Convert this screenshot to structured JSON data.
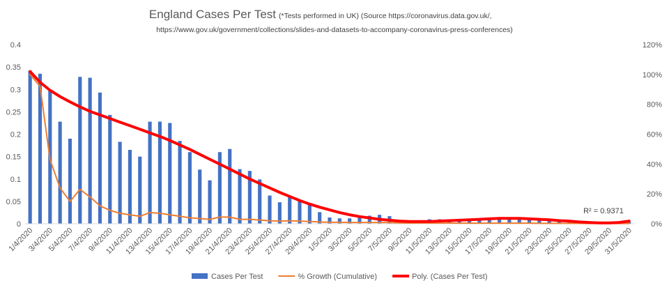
{
  "chart_data": {
    "type": "bar",
    "title": "England Cases Per Test",
    "title_note": "(*Tests performed in UK) (Source https://coronavirus.data.gov.uk/,",
    "title_line2": "https://www.gov.uk/government/collections/slides-and-datasets-to-accompany-coronavirus-press-conferences)",
    "xlabel": "",
    "ylabel": "",
    "ylim": [
      0,
      0.4
    ],
    "y_ticks": [
      "0",
      "0.05",
      "0.1",
      "0.15",
      "0.2",
      "0.25",
      "0.3",
      "0.35",
      "0.4"
    ],
    "y2lim": [
      0,
      1.2
    ],
    "y2_ticks": [
      "0%",
      "20%",
      "40%",
      "60%",
      "80%",
      "100%",
      "120%"
    ],
    "categories": [
      "1/4/2020",
      "2/4/2020",
      "3/4/2020",
      "4/4/2020",
      "5/4/2020",
      "6/4/2020",
      "7/4/2020",
      "8/4/2020",
      "9/4/2020",
      "10/4/2020",
      "11/4/2020",
      "12/4/2020",
      "13/4/2020",
      "14/4/2020",
      "15/4/2020",
      "16/4/2020",
      "17/4/2020",
      "18/4/2020",
      "19/4/2020",
      "20/4/2020",
      "21/4/2020",
      "22/4/2020",
      "23/4/2020",
      "24/4/2020",
      "25/4/2020",
      "26/4/2020",
      "27/4/2020",
      "28/4/2020",
      "29/4/2020",
      "30/4/2020",
      "1/5/2020",
      "2/5/2020",
      "3/5/2020",
      "4/5/2020",
      "5/5/2020",
      "6/5/2020",
      "7/5/2020",
      "8/5/2020",
      "9/5/2020",
      "10/5/2020",
      "11/5/2020",
      "12/5/2020",
      "13/5/2020",
      "14/5/2020",
      "15/5/2020",
      "16/5/2020",
      "17/5/2020",
      "18/5/2020",
      "19/5/2020",
      "20/5/2020",
      "21/5/2020",
      "22/5/2020",
      "23/5/2020",
      "24/5/2020",
      "25/5/2020",
      "26/5/2020",
      "27/5/2020",
      "28/5/2020",
      "29/5/2020",
      "30/5/2020",
      "31/5/2020"
    ],
    "x_tick_labels": [
      "1/4/2020",
      "3/4/2020",
      "5/4/2020",
      "7/4/2020",
      "9/4/2020",
      "11/4/2020",
      "13/4/2020",
      "15/4/2020",
      "17/4/2020",
      "19/4/2020",
      "21/4/2020",
      "23/4/2020",
      "25/4/2020",
      "27/4/2020",
      "29/4/2020",
      "1/5/2020",
      "3/5/2020",
      "5/5/2020",
      "7/5/2020",
      "9/5/2020",
      "11/5/2020",
      "13/5/2020",
      "15/5/2020",
      "17/5/2020",
      "19/5/2020",
      "21/5/2020",
      "23/5/2020",
      "25/5/2020",
      "27/5/2020",
      "29/5/2020",
      "31/5/2020"
    ],
    "series": [
      {
        "name": "Cases Per Test",
        "type": "bar",
        "axis": "left",
        "color": "#4472C4",
        "values": [
          0.342,
          0.335,
          0.297,
          0.228,
          0.19,
          0.328,
          0.326,
          0.293,
          0.243,
          0.183,
          0.165,
          0.15,
          0.228,
          0.228,
          0.225,
          0.185,
          0.16,
          0.121,
          0.097,
          0.16,
          0.167,
          0.122,
          0.118,
          0.099,
          0.063,
          0.048,
          0.059,
          0.052,
          0.043,
          0.026,
          0.014,
          0.012,
          0.012,
          0.014,
          0.018,
          0.02,
          0.017,
          0.006,
          0.005,
          0.005,
          0.01,
          0.01,
          0.01,
          0.009,
          0.009,
          0.01,
          0.009,
          0.01,
          0.011,
          0.01,
          0.009,
          0.008,
          0.007,
          0.006,
          0.005,
          0.004,
          0.003,
          0.002,
          0.001,
          0.002,
          0.004
        ]
      },
      {
        "name": "% Growth (Cumulative)",
        "type": "line",
        "axis": "right",
        "color": "#ED7D31",
        "values": [
          1.0,
          0.92,
          0.43,
          0.24,
          0.15,
          0.23,
          0.18,
          0.12,
          0.09,
          0.07,
          0.06,
          0.05,
          0.075,
          0.07,
          0.06,
          0.05,
          0.04,
          0.035,
          0.03,
          0.045,
          0.045,
          0.03,
          0.03,
          0.025,
          0.02,
          0.018,
          0.02,
          0.018,
          0.015,
          0.012,
          0.01,
          0.01,
          0.009,
          0.009,
          0.009,
          0.009,
          0.008,
          0.006,
          0.005,
          0.005,
          0.005,
          0.005,
          0.005,
          0.004,
          0.004,
          0.004,
          0.004,
          0.004,
          0.004,
          0.004,
          0.004,
          0.003,
          0.003,
          0.003,
          0.003,
          0.003,
          0.002,
          0.002,
          0.002,
          0.002,
          0.002
        ]
      },
      {
        "name": "Poly. (Cases Per Test)",
        "type": "line",
        "axis": "left",
        "color": "#FF0000",
        "values": [
          0.34,
          0.316,
          0.298,
          0.284,
          0.272,
          0.261,
          0.251,
          0.243,
          0.235,
          0.227,
          0.219,
          0.211,
          0.203,
          0.195,
          0.186,
          0.176,
          0.166,
          0.155,
          0.144,
          0.133,
          0.122,
          0.111,
          0.1,
          0.09,
          0.08,
          0.07,
          0.061,
          0.052,
          0.044,
          0.037,
          0.031,
          0.025,
          0.02,
          0.016,
          0.013,
          0.01,
          0.008,
          0.006,
          0.005,
          0.005,
          0.005,
          0.006,
          0.007,
          0.008,
          0.009,
          0.01,
          0.011,
          0.012,
          0.012,
          0.012,
          0.011,
          0.01,
          0.009,
          0.007,
          0.006,
          0.004,
          0.003,
          0.002,
          0.002,
          0.003,
          0.006
        ]
      }
    ],
    "annotation": "R² = 0.9371",
    "legend_position": "bottom",
    "grid": false
  }
}
